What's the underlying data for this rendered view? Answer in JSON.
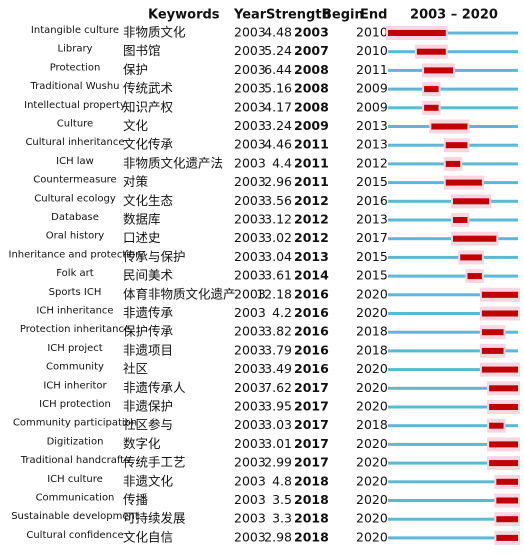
{
  "header": {
    "keywords": "Keywords",
    "year": "Year",
    "strength": "Strength",
    "begin": "Begin",
    "end": "End"
  },
  "timeline": {
    "label": "2003 – 2020",
    "range": [
      2003,
      2020
    ]
  },
  "table": {
    "rows": [
      [
        "Intangible culture",
        "非物质文化",
        2003,
        4.48,
        2003,
        2010
      ],
      [
        "Library",
        "图书馆",
        2003,
        5.24,
        2007,
        2010
      ],
      [
        "Protection",
        "保护",
        2003,
        6.44,
        2008,
        2011
      ],
      [
        "Traditional Wushu",
        "传统武术",
        2003,
        5.16,
        2008,
        2009
      ],
      [
        "Intellectual property",
        "知识产权",
        2003,
        4.17,
        2008,
        2009
      ],
      [
        "Culture",
        "文化",
        2003,
        3.24,
        2009,
        2013
      ],
      [
        "Cultural inheritance",
        "文化传承",
        2003,
        4.46,
        2011,
        2013
      ],
      [
        "ICH law",
        "非物质文化遗产法",
        2003,
        4.4,
        2011,
        2012
      ],
      [
        "Countermeasure",
        "对策",
        2003,
        2.96,
        2011,
        2015
      ],
      [
        "Cultural ecology",
        "文化生态",
        2003,
        3.56,
        2012,
        2016
      ],
      [
        "Database",
        "数据库",
        2003,
        3.12,
        2012,
        2013
      ],
      [
        "Oral history",
        "口述史",
        2003,
        3.02,
        2012,
        2017
      ],
      [
        "Inheritance and protection",
        "传承与保护",
        2003,
        3.04,
        2013,
        2015
      ],
      [
        "Folk art",
        "民间美术",
        2003,
        3.61,
        2014,
        2015
      ],
      [
        "Sports ICH",
        "体育非物质文化遗产",
        2003,
        12.18,
        2016,
        2020
      ],
      [
        "ICH inheritance",
        "非遗传承",
        2003,
        4.2,
        2016,
        2020
      ],
      [
        "Protection inheritance",
        "保护传承",
        2003,
        3.82,
        2016,
        2018
      ],
      [
        "ICH project",
        "非遗项目",
        2003,
        3.79,
        2016,
        2018
      ],
      [
        "Community",
        "社区",
        2003,
        3.49,
        2016,
        2020
      ],
      [
        "ICH inheritor",
        "非遗传承人",
        2003,
        7.62,
        2017,
        2020
      ],
      [
        "ICH protection",
        "非遗保护",
        2003,
        3.95,
        2017,
        2020
      ],
      [
        "Community participation",
        "社区参与",
        2003,
        3.03,
        2017,
        2018
      ],
      [
        "Digitization",
        "数字化",
        2003,
        3.01,
        2017,
        2020
      ],
      [
        "Traditional handcrafts",
        "传统手工艺",
        2003,
        2.99,
        2017,
        2020
      ],
      [
        "ICH culture",
        "非遗文化",
        2003,
        4.8,
        2018,
        2020
      ],
      [
        "Communication",
        "传播",
        2003,
        3.5,
        2018,
        2020
      ],
      [
        "Sustainable development",
        "可持续发展",
        2003,
        3.3,
        2018,
        2020
      ],
      [
        "Cultural confidence",
        "文化自信",
        2003,
        2.98,
        2018,
        2020
      ]
    ]
  }
}
